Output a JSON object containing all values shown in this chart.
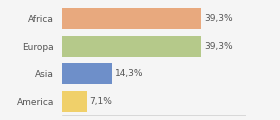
{
  "categories": [
    "Africa",
    "Europa",
    "Asia",
    "America"
  ],
  "values": [
    39.3,
    39.3,
    14.3,
    7.1
  ],
  "labels": [
    "39,3%",
    "39,3%",
    "14,3%",
    "7,1%"
  ],
  "bar_colors": [
    "#e8a97e",
    "#b5c98a",
    "#6e8fc9",
    "#f0d06a"
  ],
  "background_color": "#f5f5f5",
  "xlim": [
    0,
    52
  ],
  "bar_height": 0.75,
  "label_fontsize": 6.5,
  "tick_fontsize": 6.5,
  "label_color": "#555555",
  "tick_color": "#555555"
}
